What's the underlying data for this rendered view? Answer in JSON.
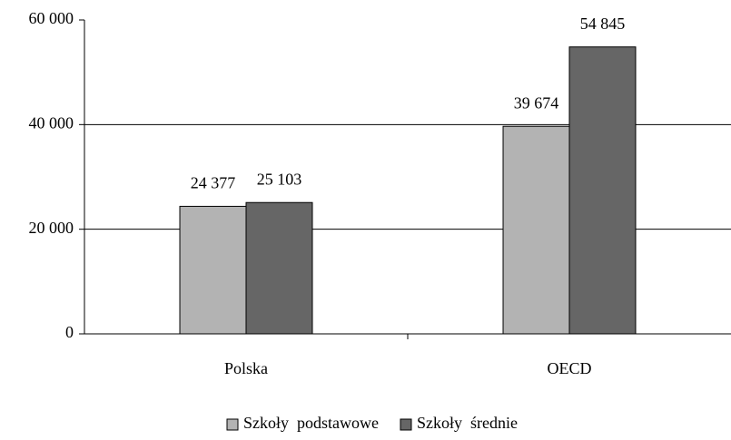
{
  "chart_data": {
    "type": "bar",
    "categories": [
      "Polska",
      "OECD"
    ],
    "series": [
      {
        "name": "Szkoły  podstawowe",
        "color": "#b3b3b3",
        "values": [
          24377,
          39674
        ],
        "value_labels": [
          "24 377",
          "39 674"
        ]
      },
      {
        "name": "Szkoły  średnie",
        "color": "#666666",
        "values": [
          25103,
          54845
        ],
        "value_labels": [
          "25 103",
          "54 845"
        ]
      }
    ],
    "ylim": [
      0,
      60000
    ],
    "yticks": [
      0,
      {
        "value": 20000,
        "label": "20 000"
      },
      {
        "value": 40000,
        "label": "40 000"
      },
      {
        "value": 60000,
        "label": "60 000"
      }
    ],
    "grid": true,
    "legend": "bottom"
  }
}
